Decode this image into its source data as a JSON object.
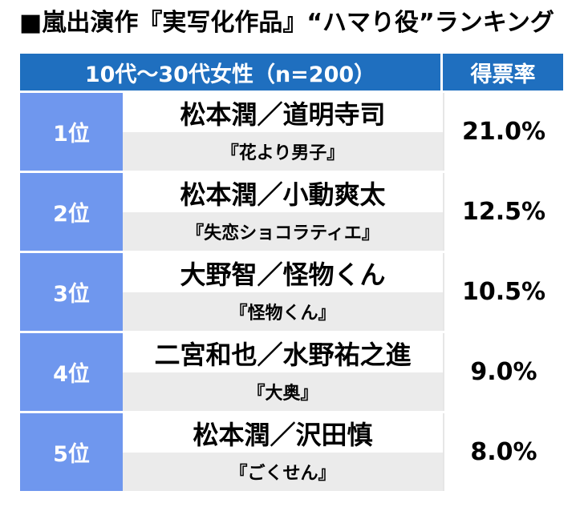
{
  "title": "■嵐出演作『実写化作品』“ハマり役”ランキング",
  "chart_data": {
    "type": "table",
    "title": "■嵐出演作『実写化作品』“ハマり役”ランキング",
    "header": {
      "group": "10代〜30代女性（n=200）",
      "value": "得票率"
    },
    "rows": [
      {
        "rank": "1位",
        "name": "松本潤／道明寺司",
        "work": "『花より男子』",
        "value": "21.0%",
        "percent": 21.0
      },
      {
        "rank": "2位",
        "name": "松本潤／小動爽太",
        "work": "『失恋ショコラティエ』",
        "value": "12.5%",
        "percent": 12.5
      },
      {
        "rank": "3位",
        "name": "大野智／怪物くん",
        "work": "『怪物くん』",
        "value": "10.5%",
        "percent": 10.5
      },
      {
        "rank": "4位",
        "name": "二宮和也／水野祐之進",
        "work": "『大奥』",
        "value": "9.0%",
        "percent": 9.0
      },
      {
        "rank": "5位",
        "name": "松本潤／沢田慎",
        "work": "『ごくせん』",
        "value": "8.0%",
        "percent": 8.0
      }
    ]
  }
}
